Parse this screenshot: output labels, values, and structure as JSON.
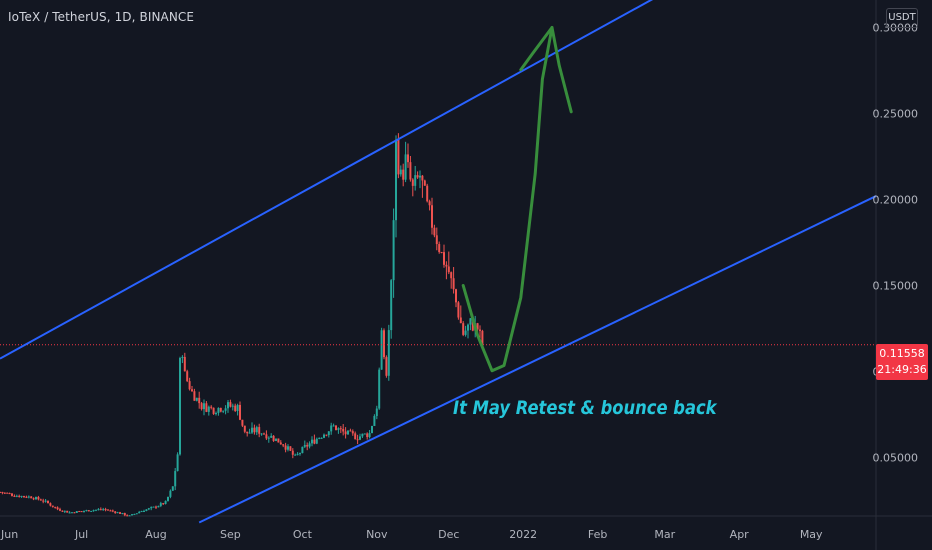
{
  "header": {
    "symbol_title": "IoTeX / TetherUS, 1D, BINANCE",
    "currency": "USDT"
  },
  "price_tag": {
    "price": "0.11558",
    "countdown": "21:49:36"
  },
  "annotation": {
    "text": "It May Retest & bounce back"
  },
  "colors": {
    "background": "#131722",
    "up_candle": "#26a69a",
    "down_candle": "#ef5350",
    "channel_line": "#2962ff",
    "drawing": "#388e3c",
    "annotation_text": "#26c6da",
    "price_tag": "#f23645"
  },
  "chart_data": {
    "type": "candlestick",
    "symbol": "IoTeX / TetherUS",
    "interval": "1D",
    "exchange": "BINANCE",
    "ylim": [
      0.016,
      0.316
    ],
    "y_ticks": [
      "0.30000",
      "0.25000",
      "0.20000",
      "0.15000",
      "0.10000",
      "0.05000"
    ],
    "y_tick_values": [
      0.3,
      0.25,
      0.2,
      0.15,
      0.1,
      0.05
    ],
    "x_ticks": [
      "Jun",
      "Jul",
      "Aug",
      "Sep",
      "Oct",
      "Nov",
      "Dec",
      "2022",
      "Feb",
      "Mar",
      "Apr",
      "May"
    ],
    "x_tick_dates": [
      "2021-06-01",
      "2021-07-01",
      "2021-08-01",
      "2021-09-01",
      "2021-10-01",
      "2021-11-01",
      "2021-12-01",
      "2022-01-01",
      "2022-02-01",
      "2022-03-01",
      "2022-04-01",
      "2022-05-01"
    ],
    "x_range": [
      "2021-05-28",
      "2022-05-28"
    ],
    "last_price": 0.11558,
    "series_close": [
      [
        "2021-05-28",
        0.03
      ],
      [
        "2021-06-03",
        0.028
      ],
      [
        "2021-06-10",
        0.027
      ],
      [
        "2021-06-15",
        0.025
      ],
      [
        "2021-06-21",
        0.02
      ],
      [
        "2021-06-26",
        0.018
      ],
      [
        "2021-07-02",
        0.019
      ],
      [
        "2021-07-10",
        0.02
      ],
      [
        "2021-07-16",
        0.018
      ],
      [
        "2021-07-21",
        0.016
      ],
      [
        "2021-07-26",
        0.019
      ],
      [
        "2021-07-31",
        0.021
      ],
      [
        "2021-08-05",
        0.024
      ],
      [
        "2021-08-08",
        0.033
      ],
      [
        "2021-08-10",
        0.052
      ],
      [
        "2021-08-11",
        0.105
      ],
      [
        "2021-08-12",
        0.112
      ],
      [
        "2021-08-13",
        0.098
      ],
      [
        "2021-08-16",
        0.088
      ],
      [
        "2021-08-20",
        0.08
      ],
      [
        "2021-08-25",
        0.078
      ],
      [
        "2021-08-31",
        0.08
      ],
      [
        "2021-09-04",
        0.079
      ],
      [
        "2021-09-07",
        0.064
      ],
      [
        "2021-09-12",
        0.066
      ],
      [
        "2021-09-18",
        0.062
      ],
      [
        "2021-09-23",
        0.058
      ],
      [
        "2021-09-28",
        0.05
      ],
      [
        "2021-10-02",
        0.056
      ],
      [
        "2021-10-08",
        0.062
      ],
      [
        "2021-10-14",
        0.068
      ],
      [
        "2021-10-19",
        0.064
      ],
      [
        "2021-10-24",
        0.062
      ],
      [
        "2021-10-29",
        0.064
      ],
      [
        "2021-11-01",
        0.08
      ],
      [
        "2021-11-03",
        0.12
      ],
      [
        "2021-11-05",
        0.098
      ],
      [
        "2021-11-07",
        0.15
      ],
      [
        "2021-11-09",
        0.232
      ],
      [
        "2021-11-11",
        0.212
      ],
      [
        "2021-11-13",
        0.222
      ],
      [
        "2021-11-16",
        0.205
      ],
      [
        "2021-11-19",
        0.214
      ],
      [
        "2021-11-22",
        0.195
      ],
      [
        "2021-11-25",
        0.182
      ],
      [
        "2021-11-28",
        0.168
      ],
      [
        "2021-12-01",
        0.158
      ],
      [
        "2021-12-04",
        0.14
      ],
      [
        "2021-12-07",
        0.122
      ],
      [
        "2021-12-10",
        0.128
      ],
      [
        "2021-12-13",
        0.125
      ],
      [
        "2021-12-15",
        0.116
      ]
    ],
    "channel_upper": [
      [
        "2021-05-28",
        0.1075
      ],
      [
        "2022-04-02",
        0.345
      ]
    ],
    "channel_lower": [
      [
        "2021-08-19",
        0.0122
      ],
      [
        "2022-05-28",
        0.202
      ]
    ],
    "projection_curve": [
      [
        "2021-12-07",
        0.15
      ],
      [
        "2021-12-13",
        0.121
      ],
      [
        "2021-12-19",
        0.1005
      ],
      [
        "2021-12-24",
        0.1035
      ],
      [
        "2021-12-31",
        0.143
      ],
      [
        "2022-01-06",
        0.215
      ],
      [
        "2022-01-09",
        0.27
      ],
      [
        "2022-01-13",
        0.3
      ],
      [
        "2022-01-16",
        0.278
      ],
      [
        "2022-01-21",
        0.251
      ]
    ],
    "projection_start": [
      [
        "2021-12-31",
        0.2755
      ],
      [
        "2022-01-05",
        0.285
      ],
      [
        "2022-01-13",
        0.3
      ]
    ]
  }
}
